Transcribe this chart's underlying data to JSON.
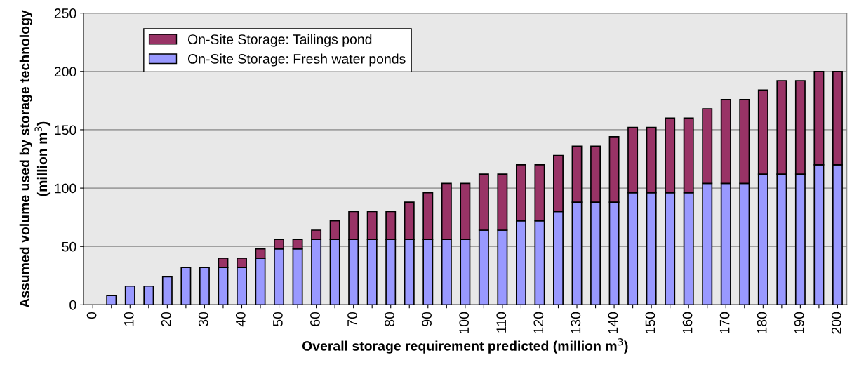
{
  "chart_data": {
    "type": "bar",
    "stacked": true,
    "xlabel": "Overall storage requirement predicted (million m$^{3}$)",
    "ylabel": "Assumed volume used by storage technology (million m$^{3}$)",
    "categories": [
      "0",
      null,
      "10",
      null,
      "20",
      null,
      "30",
      null,
      "40",
      null,
      "50",
      null,
      "60",
      null,
      "70",
      null,
      "80",
      null,
      "90",
      null,
      "100",
      null,
      "110",
      null,
      "120",
      null,
      "130",
      null,
      "140",
      null,
      "150",
      null,
      "160",
      null,
      "170",
      null,
      "180",
      null,
      "190",
      null,
      "200"
    ],
    "series": [
      {
        "name": "On-Site Storage: Fresh water ponds",
        "color": "#9999ff",
        "values": [
          null,
          8,
          16,
          16,
          24,
          32,
          32,
          32,
          32,
          40,
          48,
          48,
          56,
          56,
          56,
          56,
          56,
          56,
          56,
          56,
          56,
          64,
          64,
          72,
          72,
          80,
          88,
          88,
          88,
          96,
          96,
          96,
          96,
          104,
          104,
          104,
          112,
          112,
          112,
          120,
          120
        ]
      },
      {
        "name": "On-Site Storage: Tailings pond",
        "color": "#993366",
        "values": [
          null,
          null,
          null,
          null,
          null,
          null,
          null,
          8,
          8,
          8,
          8,
          8,
          8,
          16,
          24,
          24,
          24,
          32,
          40,
          48,
          48,
          48,
          48,
          48,
          48,
          48,
          48,
          48,
          56,
          56,
          56,
          64,
          64,
          64,
          72,
          72,
          72,
          80,
          80,
          80,
          80
        ]
      }
    ],
    "ylim": [
      0,
      250
    ],
    "yticks": [
      0,
      50,
      100,
      150,
      200,
      250
    ],
    "grid": "y",
    "legend": "top left"
  }
}
